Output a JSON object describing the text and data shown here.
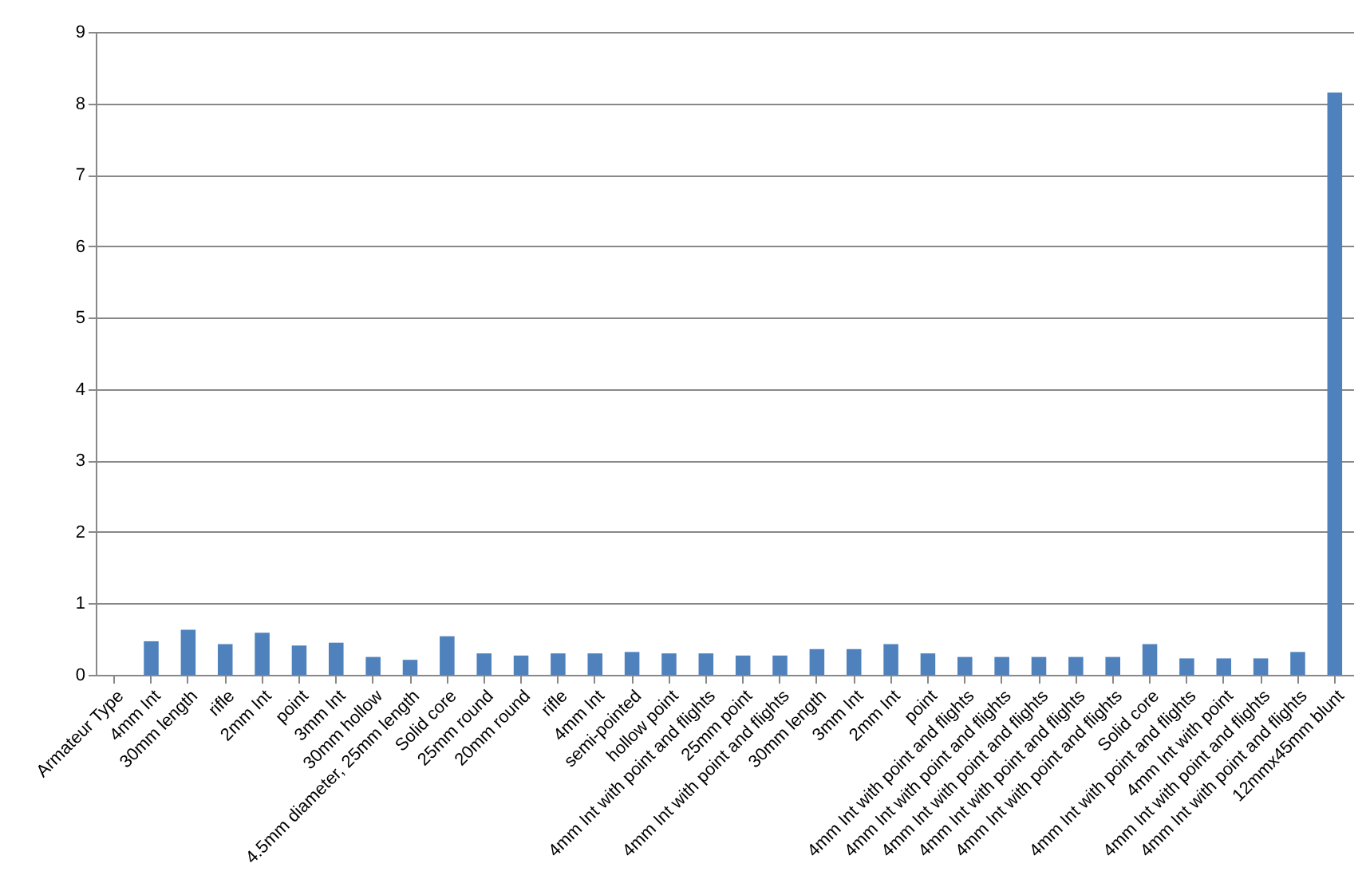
{
  "chart_data": {
    "type": "bar",
    "categories": [
      "Armateur Type",
      "4mm Int",
      "30mm length",
      "rifle",
      "2mm Int",
      "point",
      "3mm Int",
      "30mm hollow",
      "4.5mm diameter, 25mm length",
      "Solid core",
      "25mm round",
      "20mm round",
      "rifle",
      "4mm Int",
      "semi-pointed",
      "hollow point",
      "4mm Int with point and flights",
      "25mm point",
      "4mm Int with point and flights",
      "30mm length",
      "3mm Int",
      "2mm Int",
      "point",
      "4mm Int with point and flights",
      "4mm Int with point and flights",
      "4mm Int with point and flights",
      "4mm Int with point and flights",
      "4mm Int with point and flights",
      "Solid core",
      "4mm Int with point and flights",
      "4mm Int with point",
      "4mm Int with point and flights",
      "4mm Int with point and flights",
      "12mmx45mm blunt"
    ],
    "values": [
      null,
      0.47,
      0.63,
      0.43,
      0.59,
      0.41,
      0.45,
      0.25,
      0.21,
      0.54,
      0.3,
      0.27,
      0.3,
      0.3,
      0.32,
      0.3,
      0.3,
      0.27,
      0.27,
      0.36,
      0.36,
      0.43,
      0.3,
      0.25,
      0.25,
      0.25,
      0.25,
      0.25,
      0.43,
      0.23,
      0.23,
      0.23,
      0.32,
      8.15
    ],
    "color": "#4f81bd",
    "ylim": [
      0,
      9
    ],
    "yticks": [
      0,
      1,
      2,
      3,
      4,
      5,
      6,
      7,
      8,
      9
    ],
    "grid": "y",
    "legend": false
  }
}
